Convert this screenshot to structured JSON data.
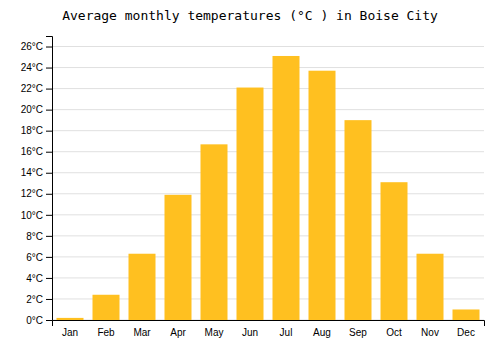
{
  "chart_data": {
    "type": "bar",
    "title": "Average monthly temperatures (°C ) in Boise City",
    "categories": [
      "Jan",
      "Feb",
      "Mar",
      "Apr",
      "May",
      "Jun",
      "Jul",
      "Aug",
      "Sep",
      "Oct",
      "Nov",
      "Dec"
    ],
    "values": [
      0.2,
      2.4,
      6.3,
      11.9,
      16.7,
      22.1,
      25.1,
      23.7,
      19.0,
      13.1,
      6.3,
      1.0
    ],
    "color": "#FFC020",
    "ylim": [
      0,
      27
    ],
    "yticks": [
      {
        "value": 0,
        "label": "0°C"
      },
      {
        "value": 2,
        "label": "2°C"
      },
      {
        "value": 4,
        "label": "4°C"
      },
      {
        "value": 6,
        "label": "6°C"
      },
      {
        "value": 8,
        "label": "8°C"
      },
      {
        "value": 10,
        "label": "10°C"
      },
      {
        "value": 12,
        "label": "12°C"
      },
      {
        "value": 14,
        "label": "14°C"
      },
      {
        "value": 16,
        "label": "16°C"
      },
      {
        "value": 18,
        "label": "18°C"
      },
      {
        "value": 20,
        "label": "20°C"
      },
      {
        "value": 22,
        "label": "22°C"
      },
      {
        "value": 24,
        "label": "24°C"
      },
      {
        "value": 26,
        "label": "26°C"
      }
    ],
    "grid": true
  }
}
